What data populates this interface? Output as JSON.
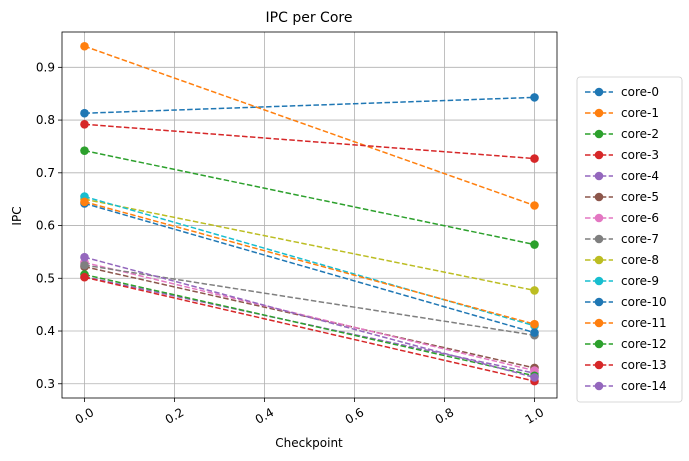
{
  "chart_data": {
    "type": "line",
    "title": "IPC per Core",
    "xlabel": "Checkpoint",
    "ylabel": "IPC",
    "x": [
      0.0,
      1.0
    ],
    "xlim": [
      -0.05,
      1.05
    ],
    "ylim": [
      0.273,
      0.967
    ],
    "xticks": [
      0.0,
      0.2,
      0.4,
      0.6,
      0.8,
      1.0
    ],
    "xtick_labels": [
      "0.0",
      "0.2",
      "0.4",
      "0.6",
      "0.8",
      "1.0"
    ],
    "yticks": [
      0.3,
      0.4,
      0.5,
      0.6,
      0.7,
      0.8,
      0.9
    ],
    "ytick_labels": [
      "0.3",
      "0.4",
      "0.5",
      "0.6",
      "0.7",
      "0.8",
      "0.9"
    ],
    "grid": true,
    "legend_position": "outside-right",
    "line_style": "dashed",
    "marker": "circle",
    "series": [
      {
        "name": "core-0",
        "values": [
          0.813,
          0.843
        ],
        "color": "#1f77b4"
      },
      {
        "name": "core-1",
        "values": [
          0.94,
          0.638
        ],
        "color": "#ff7f0e"
      },
      {
        "name": "core-2",
        "values": [
          0.742,
          0.564
        ],
        "color": "#2ca02c"
      },
      {
        "name": "core-3",
        "values": [
          0.792,
          0.727
        ],
        "color": "#d62728"
      },
      {
        "name": "core-4",
        "values": [
          0.503,
          0.32
        ],
        "color": "#9467bd"
      },
      {
        "name": "core-5",
        "values": [
          0.522,
          0.33
        ],
        "color": "#8c564b"
      },
      {
        "name": "core-6",
        "values": [
          0.53,
          0.325
        ],
        "color": "#e377c2"
      },
      {
        "name": "core-7",
        "values": [
          0.525,
          0.392
        ],
        "color": "#7f7f7f"
      },
      {
        "name": "core-8",
        "values": [
          0.65,
          0.477
        ],
        "color": "#bcbd22"
      },
      {
        "name": "core-9",
        "values": [
          0.655,
          0.41
        ],
        "color": "#17becf"
      },
      {
        "name": "core-10",
        "values": [
          0.642,
          0.397
        ],
        "color": "#1f77b4"
      },
      {
        "name": "core-11",
        "values": [
          0.645,
          0.413
        ],
        "color": "#ff7f0e"
      },
      {
        "name": "core-12",
        "values": [
          0.507,
          0.315
        ],
        "color": "#2ca02c"
      },
      {
        "name": "core-13",
        "values": [
          0.502,
          0.305
        ],
        "color": "#d62728"
      },
      {
        "name": "core-14",
        "values": [
          0.54,
          0.312
        ],
        "color": "#9467bd"
      }
    ]
  }
}
